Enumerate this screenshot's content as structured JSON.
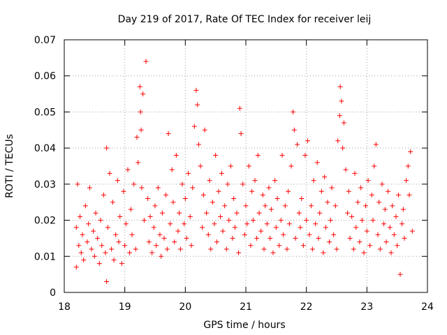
{
  "chart_data": {
    "type": "scatter",
    "title": "Day 219 of 2017, Rate Of TEC Index for receiver leij",
    "xlabel": "GPS time / hours",
    "ylabel": "ROTI / TECUs",
    "xlim": [
      18,
      24
    ],
    "ylim": [
      0,
      0.07
    ],
    "xticks": [
      18,
      19,
      20,
      21,
      22,
      23,
      24
    ],
    "xtick_labels": [
      "18",
      "19",
      "20",
      "21",
      "22",
      "23",
      "24"
    ],
    "yticks": [
      0,
      0.01,
      0.02,
      0.03,
      0.04,
      0.05,
      0.06,
      0.07
    ],
    "ytick_labels": [
      "0",
      "0.01",
      "0.02",
      "0.03",
      "0.04",
      "0.05",
      "0.06",
      "0.07"
    ],
    "grid": true,
    "marker": "+",
    "series": [
      {
        "name": "ROTI",
        "color": "#ff0000",
        "x": [
          18.2,
          18.2,
          18.22,
          18.24,
          18.26,
          18.28,
          18.3,
          18.32,
          18.35,
          18.38,
          18.4,
          18.42,
          18.45,
          18.48,
          18.5,
          18.52,
          18.55,
          18.58,
          18.6,
          18.62,
          18.65,
          18.68,
          18.7,
          18.7,
          18.72,
          18.75,
          18.78,
          18.8,
          18.82,
          18.85,
          18.88,
          18.9,
          18.92,
          18.95,
          18.98,
          19.0,
          19.02,
          19.05,
          19.08,
          19.1,
          19.12,
          19.15,
          19.18,
          19.2,
          19.22,
          19.25,
          19.26,
          19.27,
          19.28,
          19.3,
          19.32,
          19.35,
          19.38,
          19.4,
          19.42,
          19.45,
          19.48,
          19.5,
          19.52,
          19.55,
          19.58,
          19.6,
          19.62,
          19.65,
          19.68,
          19.7,
          19.72,
          19.75,
          19.78,
          19.8,
          19.82,
          19.85,
          19.88,
          19.9,
          19.92,
          19.95,
          19.98,
          20.0,
          20.02,
          20.05,
          20.08,
          20.1,
          20.12,
          20.15,
          20.18,
          20.2,
          20.22,
          20.25,
          20.28,
          20.3,
          20.32,
          20.35,
          20.38,
          20.4,
          20.42,
          20.45,
          20.48,
          20.5,
          20.52,
          20.55,
          20.58,
          20.6,
          20.62,
          20.65,
          20.68,
          20.7,
          20.72,
          20.75,
          20.78,
          20.8,
          20.82,
          20.85,
          20.88,
          20.9,
          20.92,
          20.95,
          20.98,
          21.0,
          21.02,
          21.05,
          21.08,
          21.1,
          21.12,
          21.15,
          21.18,
          21.2,
          21.22,
          21.25,
          21.28,
          21.3,
          21.32,
          21.35,
          21.38,
          21.4,
          21.42,
          21.45,
          21.48,
          21.5,
          21.52,
          21.55,
          21.58,
          21.6,
          21.62,
          21.65,
          21.68,
          21.7,
          21.72,
          21.75,
          21.78,
          21.8,
          21.82,
          21.85,
          21.88,
          21.9,
          21.92,
          21.95,
          21.98,
          22.0,
          22.02,
          22.05,
          22.08,
          22.1,
          22.12,
          22.15,
          22.18,
          22.2,
          22.22,
          22.25,
          22.28,
          22.3,
          22.32,
          22.35,
          22.38,
          22.4,
          22.42,
          22.45,
          22.48,
          22.5,
          22.52,
          22.55,
          22.56,
          22.58,
          22.6,
          22.62,
          22.65,
          22.68,
          22.7,
          22.72,
          22.75,
          22.78,
          22.8,
          22.82,
          22.85,
          22.88,
          22.9,
          22.92,
          22.95,
          22.98,
          23.0,
          23.02,
          23.05,
          23.08,
          23.1,
          23.12,
          23.15,
          23.18,
          23.2,
          23.22,
          23.25,
          23.28,
          23.3,
          23.32,
          23.35,
          23.38,
          23.4,
          23.42,
          23.45,
          23.48,
          23.5,
          23.52,
          23.55,
          23.58,
          23.6,
          23.62,
          23.65,
          23.68,
          23.7,
          23.72,
          23.75
        ],
        "y": [
          0.018,
          0.007,
          0.03,
          0.013,
          0.021,
          0.011,
          0.016,
          0.009,
          0.024,
          0.014,
          0.019,
          0.029,
          0.012,
          0.017,
          0.01,
          0.022,
          0.015,
          0.008,
          0.02,
          0.013,
          0.027,
          0.011,
          0.04,
          0.003,
          0.018,
          0.033,
          0.012,
          0.025,
          0.009,
          0.016,
          0.031,
          0.014,
          0.021,
          0.008,
          0.028,
          0.013,
          0.019,
          0.034,
          0.011,
          0.023,
          0.016,
          0.03,
          0.012,
          0.043,
          0.036,
          0.057,
          0.05,
          0.045,
          0.029,
          0.055,
          0.02,
          0.064,
          0.026,
          0.014,
          0.021,
          0.011,
          0.018,
          0.024,
          0.013,
          0.029,
          0.016,
          0.01,
          0.022,
          0.015,
          0.027,
          0.012,
          0.044,
          0.019,
          0.034,
          0.025,
          0.014,
          0.038,
          0.017,
          0.022,
          0.012,
          0.03,
          0.019,
          0.026,
          0.015,
          0.033,
          0.021,
          0.013,
          0.029,
          0.046,
          0.056,
          0.052,
          0.041,
          0.035,
          0.018,
          0.027,
          0.045,
          0.022,
          0.016,
          0.031,
          0.012,
          0.025,
          0.019,
          0.038,
          0.014,
          0.028,
          0.021,
          0.033,
          0.017,
          0.024,
          0.012,
          0.03,
          0.02,
          0.035,
          0.015,
          0.026,
          0.018,
          0.022,
          0.011,
          0.051,
          0.044,
          0.03,
          0.016,
          0.024,
          0.019,
          0.035,
          0.013,
          0.028,
          0.02,
          0.031,
          0.015,
          0.038,
          0.022,
          0.017,
          0.027,
          0.012,
          0.024,
          0.019,
          0.029,
          0.015,
          0.023,
          0.011,
          0.031,
          0.018,
          0.026,
          0.013,
          0.02,
          0.038,
          0.016,
          0.024,
          0.012,
          0.028,
          0.019,
          0.035,
          0.05,
          0.045,
          0.015,
          0.041,
          0.022,
          0.018,
          0.026,
          0.013,
          0.038,
          0.02,
          0.042,
          0.016,
          0.024,
          0.012,
          0.031,
          0.019,
          0.036,
          0.015,
          0.022,
          0.028,
          0.011,
          0.032,
          0.018,
          0.025,
          0.014,
          0.02,
          0.029,
          0.016,
          0.024,
          0.012,
          0.042,
          0.049,
          0.057,
          0.053,
          0.04,
          0.047,
          0.034,
          0.022,
          0.028,
          0.015,
          0.021,
          0.012,
          0.033,
          0.018,
          0.025,
          0.014,
          0.029,
          0.02,
          0.011,
          0.024,
          0.017,
          0.031,
          0.013,
          0.027,
          0.02,
          0.035,
          0.041,
          0.016,
          0.025,
          0.012,
          0.03,
          0.019,
          0.023,
          0.014,
          0.028,
          0.018,
          0.011,
          0.024,
          0.016,
          0.021,
          0.013,
          0.027,
          0.005,
          0.019,
          0.023,
          0.015,
          0.031,
          0.035,
          0.027,
          0.039,
          0.017
        ]
      }
    ]
  }
}
